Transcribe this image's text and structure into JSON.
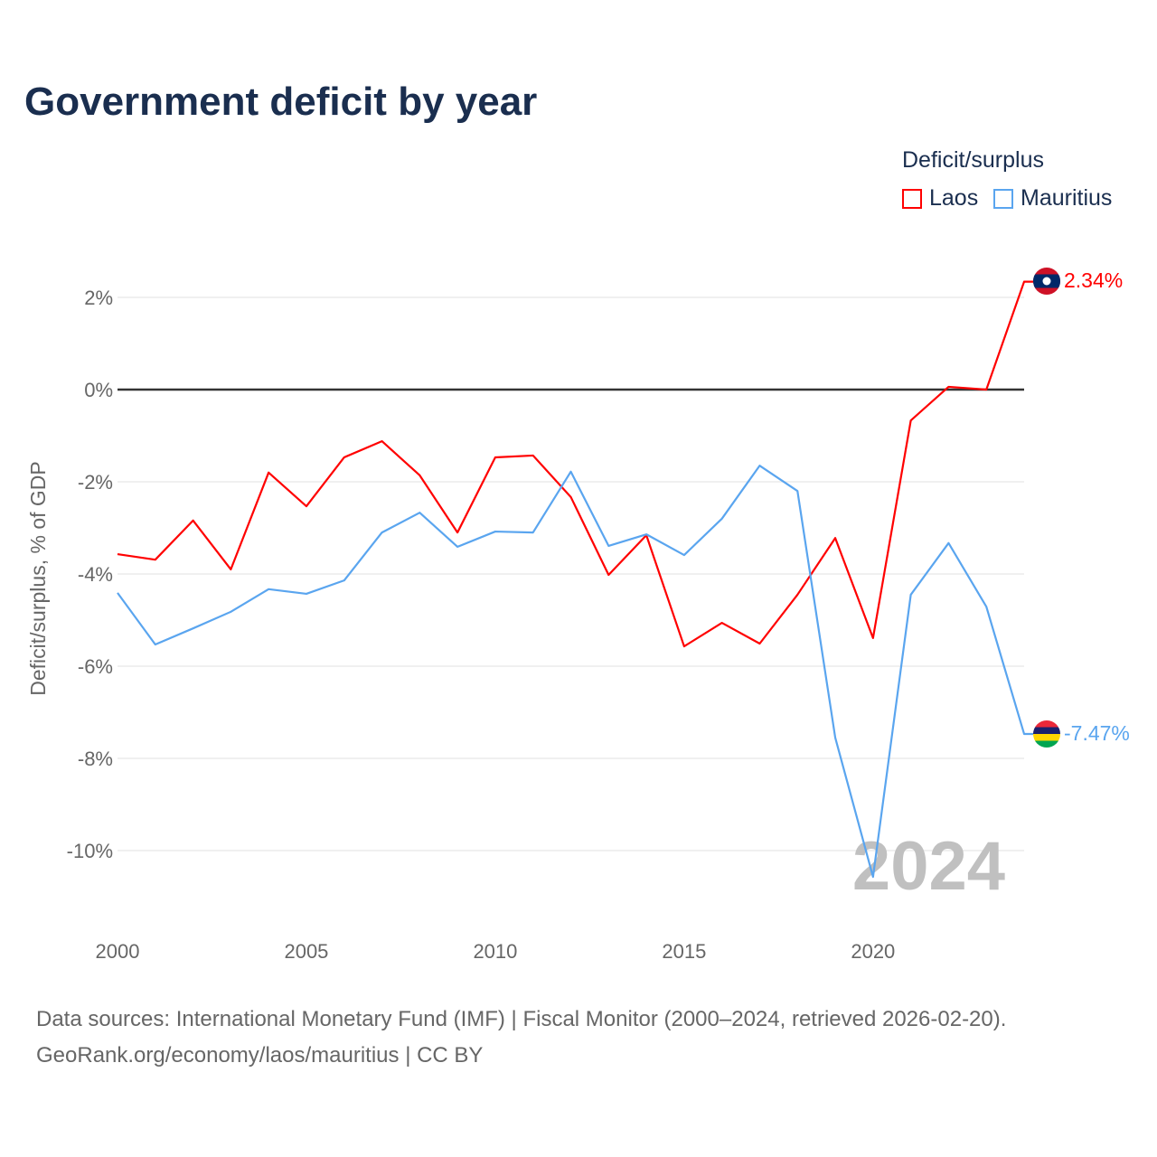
{
  "title": "Government deficit by year",
  "legend": {
    "title": "Deficit/surplus",
    "items": [
      {
        "label": "Laos",
        "color": "#ff0000"
      },
      {
        "label": "Mauritius",
        "color": "#5aa5ef"
      }
    ]
  },
  "source": {
    "line1": "Data sources: International Monetary Fund (IMF) | Fiscal Monitor (2000–2024, retrieved 2026-02-20).",
    "line2": "GeoRank.org/economy/laos/mauritius | CC BY"
  },
  "chart_data": {
    "type": "line",
    "title": "Government deficit by year",
    "xlabel": "",
    "ylabel": "Deficit/surplus, % of GDP",
    "xlim": [
      2000,
      2024
    ],
    "ylim": [
      -11.2,
      2.8
    ],
    "x_ticks": [
      2000,
      2005,
      2010,
      2015,
      2020
    ],
    "y_ticks": [
      2,
      0,
      -2,
      -4,
      -6,
      -8,
      -10
    ],
    "y_tick_labels": [
      "2%",
      "0%",
      "-2%",
      "-4%",
      "-6%",
      "-8%",
      "-10%"
    ],
    "grid": true,
    "watermark_year": "2024",
    "legend_position": "top-right",
    "x": [
      2000,
      2001,
      2002,
      2003,
      2004,
      2005,
      2006,
      2007,
      2008,
      2009,
      2010,
      2011,
      2012,
      2013,
      2014,
      2015,
      2016,
      2017,
      2018,
      2019,
      2020,
      2021,
      2022,
      2023,
      2024
    ],
    "series": [
      {
        "name": "Laos",
        "color": "#ff0000",
        "end_label": "2.34%",
        "values": [
          -3.57,
          -3.69,
          -2.84,
          -3.9,
          -1.8,
          -2.53,
          -1.47,
          -1.12,
          -1.86,
          -3.1,
          -1.47,
          -1.43,
          -2.33,
          -4.02,
          -3.16,
          -5.57,
          -5.06,
          -5.51,
          -4.45,
          -3.22,
          -5.39,
          -0.67,
          0.06,
          0.0,
          2.34
        ]
      },
      {
        "name": "Mauritius",
        "color": "#5aa5ef",
        "end_label": "-7.47%",
        "values": [
          -4.41,
          -5.53,
          -5.18,
          -4.82,
          -4.33,
          -4.43,
          -4.14,
          -3.1,
          -2.67,
          -3.41,
          -3.08,
          -3.1,
          -1.78,
          -3.39,
          -3.14,
          -3.59,
          -2.8,
          -1.65,
          -2.2,
          -7.55,
          -10.57,
          -4.45,
          -3.33,
          -4.71,
          -7.47
        ]
      }
    ]
  }
}
